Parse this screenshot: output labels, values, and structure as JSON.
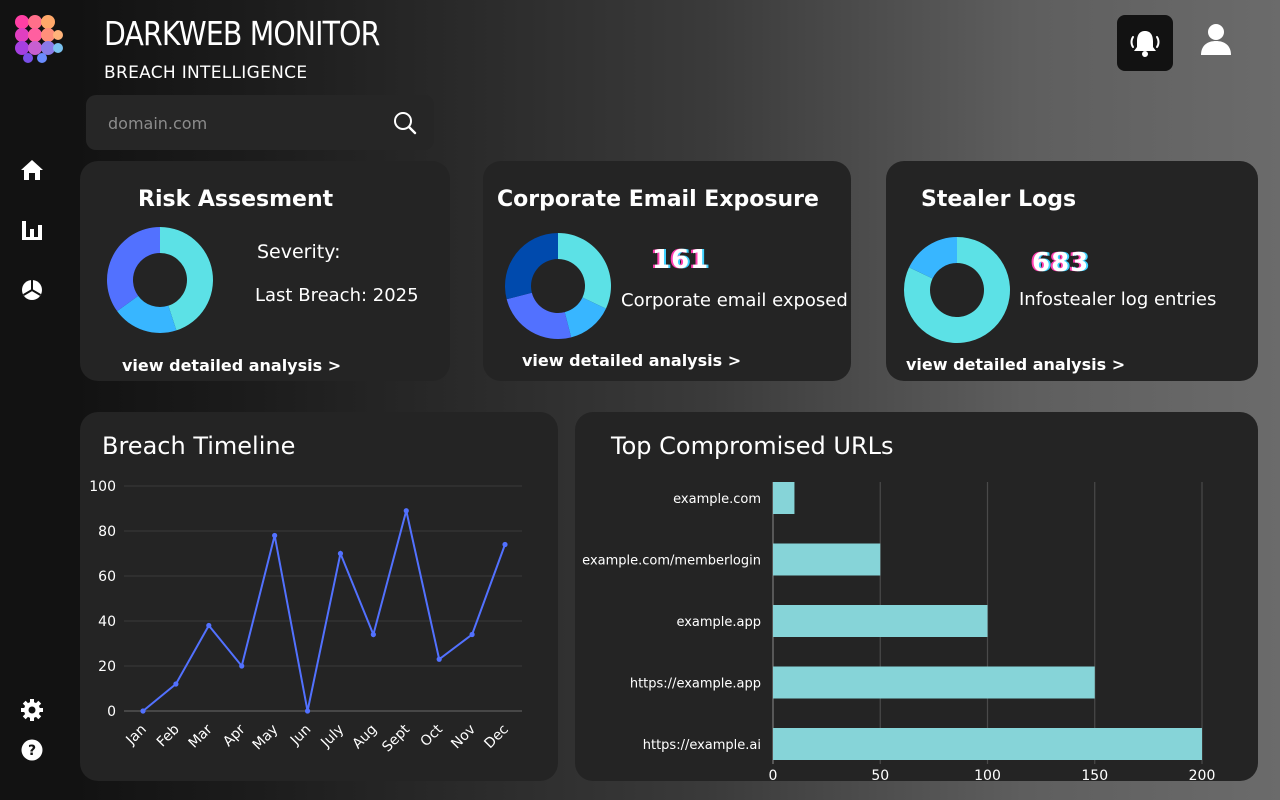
{
  "app": {
    "title": "DARKWEB MONITOR",
    "subtitle": "BREACH INTELLIGENCE"
  },
  "search": {
    "placeholder": "domain.com",
    "value": ""
  },
  "sidebar": {
    "items": [
      {
        "icon": "home-icon"
      },
      {
        "icon": "bar-chart-icon"
      },
      {
        "icon": "pie-chart-icon"
      }
    ],
    "bottom": [
      {
        "icon": "gear-icon"
      },
      {
        "icon": "help-icon"
      }
    ]
  },
  "header": {
    "notification_icon": "bell-icon",
    "user_icon": "user-icon"
  },
  "cards": {
    "risk": {
      "title": "Risk Assesment",
      "severity_label": "Severity:",
      "last_breach": "Last Breach: 2025",
      "link": "view detailed analysis >",
      "donut": [
        {
          "value": 45,
          "color": "#5ce1e6"
        },
        {
          "value": 20,
          "color": "#38b6ff"
        },
        {
          "value": 35,
          "color": "#5271ff"
        }
      ]
    },
    "email": {
      "title": "Corporate Email Exposure",
      "count": "161",
      "caption": "Corporate email exposed",
      "link": "view detailed analysis >",
      "donut": [
        {
          "value": 32,
          "color": "#5ce1e6"
        },
        {
          "value": 14,
          "color": "#38b6ff"
        },
        {
          "value": 25,
          "color": "#5271ff"
        },
        {
          "value": 29,
          "color": "#004aad"
        }
      ]
    },
    "stealer": {
      "title": "Stealer Logs",
      "count": "683",
      "caption": "Infostealer log entries",
      "link": "view detailed analysis >",
      "donut": [
        {
          "value": 82,
          "color": "#5ce1e6"
        },
        {
          "value": 18,
          "color": "#38b6ff"
        }
      ]
    }
  },
  "timeline": {
    "title": "Breach Timeline",
    "chart_data": {
      "type": "line",
      "categories": [
        "Jan",
        "Feb",
        "Mar",
        "Apr",
        "May",
        "Jun",
        "July",
        "Aug",
        "Sept",
        "Oct",
        "Nov",
        "Dec"
      ],
      "series": [
        {
          "values": [
            0,
            12,
            38,
            20,
            78,
            0,
            70,
            34,
            89,
            23,
            34,
            74
          ],
          "color": "#5271ff"
        }
      ],
      "ylim": [
        0,
        100
      ],
      "yticks": [
        0,
        20,
        40,
        60,
        80,
        100
      ],
      "grid": true
    }
  },
  "urls": {
    "title": "Top Compromised URLs",
    "chart_data": {
      "type": "bar",
      "orientation": "horizontal",
      "categories": [
        "example.com",
        "example.com/memberlogin",
        "example.app",
        "https://example.app",
        "https://example.ai"
      ],
      "values": [
        10,
        50,
        100,
        150,
        200
      ],
      "xlim": [
        0,
        200
      ],
      "xticks": [
        0,
        50,
        100,
        150,
        200
      ],
      "color": "#86d4d8",
      "grid": true
    }
  }
}
